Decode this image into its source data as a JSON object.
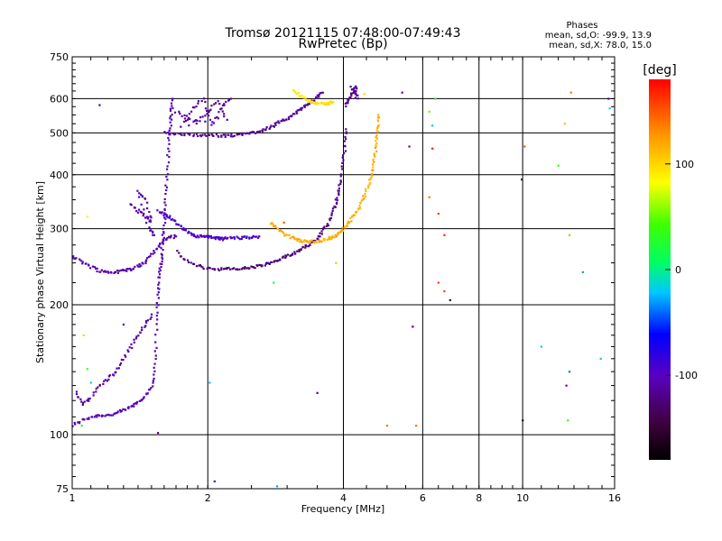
{
  "chart_data": {
    "type": "scatter",
    "title": "Tromsø 20121115 07:48:00-07:49:43",
    "subtitle": "RwPretec (Bp)",
    "xlabel": "Frequency [MHz]",
    "ylabel": "Stationary phase Virtual Height [km]",
    "x_scale": "log",
    "y_scale": "log",
    "xlim": [
      1,
      16
    ],
    "ylim": [
      75,
      750
    ],
    "x_ticks": [
      1,
      2,
      4,
      6,
      8,
      10,
      16
    ],
    "x_tick_labels": [
      "1",
      "2",
      "4",
      "6",
      "8",
      "10",
      "16"
    ],
    "y_ticks": [
      75,
      100,
      200,
      300,
      400,
      500,
      600,
      750
    ],
    "y_tick_labels": [
      "75",
      "100",
      "200",
      "300",
      "400",
      "500",
      "600",
      "750"
    ],
    "grid": true,
    "stats": {
      "heading": "Phases",
      "line_o": "mean, sd,O: -99.9, 13.9",
      "line_x": "mean, sd,X: 78.0, 15.0"
    },
    "colorbar": {
      "label": "[deg]",
      "range": [
        -180,
        180
      ],
      "ticks": [
        100,
        0,
        -100
      ],
      "tick_labels": [
        "100",
        "0",
        "-100"
      ]
    },
    "traces": [
      {
        "points": [
          [
            1.0,
            105
          ],
          [
            1.05,
            108
          ],
          [
            1.1,
            110
          ],
          [
            1.15,
            111
          ],
          [
            1.2,
            111
          ],
          [
            1.25,
            112
          ],
          [
            1.3,
            114
          ],
          [
            1.35,
            116
          ],
          [
            1.4,
            119
          ],
          [
            1.45,
            123
          ],
          [
            1.5,
            128
          ],
          [
            1.52,
            140
          ],
          [
            1.53,
            160
          ],
          [
            1.54,
            190
          ],
          [
            1.55,
            210
          ],
          [
            1.56,
            230
          ],
          [
            1.57,
            245
          ],
          [
            1.58,
            260
          ],
          [
            1.59,
            285
          ],
          [
            1.6,
            310
          ],
          [
            1.61,
            340
          ],
          [
            1.62,
            380
          ],
          [
            1.63,
            430
          ],
          [
            1.64,
            480
          ],
          [
            1.65,
            520
          ],
          [
            1.66,
            560
          ],
          [
            1.67,
            600
          ]
        ],
        "phase": -105
      },
      {
        "points": [
          [
            1.02,
            125
          ],
          [
            1.05,
            118
          ],
          [
            1.1,
            122
          ],
          [
            1.15,
            130
          ],
          [
            1.2,
            135
          ],
          [
            1.25,
            140
          ],
          [
            1.3,
            150
          ],
          [
            1.35,
            160
          ],
          [
            1.4,
            170
          ],
          [
            1.45,
            180
          ],
          [
            1.5,
            190
          ]
        ],
        "phase": -110
      },
      {
        "points": [
          [
            1.0,
            258
          ],
          [
            1.05,
            252
          ],
          [
            1.1,
            245
          ],
          [
            1.15,
            240
          ],
          [
            1.2,
            238
          ],
          [
            1.25,
            238
          ],
          [
            1.3,
            240
          ],
          [
            1.35,
            242
          ],
          [
            1.4,
            246
          ],
          [
            1.45,
            250
          ],
          [
            1.5,
            262
          ],
          [
            1.55,
            272
          ],
          [
            1.6,
            282
          ],
          [
            1.65,
            287
          ],
          [
            1.7,
            288
          ]
        ],
        "phase": -108
      },
      {
        "points": [
          [
            1.7,
            265
          ],
          [
            1.8,
            252
          ],
          [
            1.9,
            246
          ],
          [
            2.0,
            243
          ],
          [
            2.1,
            242
          ],
          [
            2.2,
            242
          ],
          [
            2.3,
            242
          ],
          [
            2.4,
            243
          ],
          [
            2.5,
            244
          ],
          [
            2.6,
            246
          ],
          [
            2.7,
            248
          ],
          [
            2.8,
            251
          ],
          [
            2.9,
            255
          ],
          [
            3.0,
            259
          ],
          [
            3.1,
            263
          ],
          [
            3.2,
            268
          ],
          [
            3.3,
            274
          ]
        ],
        "phase": -125
      },
      {
        "points": [
          [
            3.3,
            274
          ],
          [
            3.4,
            278
          ],
          [
            3.5,
            285
          ],
          [
            3.6,
            295
          ],
          [
            3.7,
            310
          ],
          [
            3.8,
            330
          ],
          [
            3.85,
            345
          ],
          [
            3.9,
            365
          ],
          [
            3.95,
            390
          ],
          [
            4.0,
            430
          ],
          [
            4.03,
            470
          ],
          [
            4.05,
            510
          ]
        ],
        "phase": -120
      },
      {
        "points": [
          [
            2.75,
            310
          ],
          [
            2.85,
            300
          ],
          [
            2.95,
            292
          ],
          [
            3.05,
            287
          ],
          [
            3.15,
            283
          ],
          [
            3.25,
            281
          ],
          [
            3.35,
            280
          ],
          [
            3.45,
            280
          ],
          [
            3.55,
            281
          ],
          [
            3.65,
            283
          ],
          [
            3.75,
            286
          ],
          [
            3.85,
            290
          ],
          [
            3.95,
            296
          ],
          [
            4.05,
            304
          ],
          [
            4.15,
            314
          ],
          [
            4.25,
            325
          ],
          [
            4.35,
            340
          ],
          [
            4.45,
            358
          ],
          [
            4.55,
            380
          ],
          [
            4.62,
            405
          ],
          [
            4.68,
            430
          ],
          [
            4.72,
            460
          ],
          [
            4.75,
            490
          ],
          [
            4.77,
            520
          ],
          [
            4.78,
            550
          ]
        ],
        "phase": 118
      },
      {
        "points": [
          [
            1.6,
            500
          ],
          [
            1.7,
            498
          ],
          [
            1.8,
            495
          ],
          [
            1.9,
            495
          ],
          [
            2.0,
            495
          ],
          [
            2.1,
            492
          ],
          [
            2.2,
            492
          ],
          [
            2.3,
            494
          ],
          [
            2.4,
            497
          ],
          [
            2.5,
            500
          ],
          [
            2.6,
            505
          ],
          [
            2.7,
            512
          ],
          [
            2.8,
            520
          ],
          [
            2.9,
            530
          ],
          [
            3.0,
            540
          ],
          [
            3.1,
            552
          ],
          [
            3.2,
            565
          ],
          [
            3.3,
            578
          ],
          [
            3.4,
            590
          ],
          [
            3.5,
            605
          ],
          [
            3.6,
            620
          ]
        ],
        "phase": -115
      },
      {
        "points": [
          [
            1.7,
            560
          ],
          [
            1.8,
            540
          ],
          [
            1.9,
            530
          ],
          [
            2.0,
            560
          ],
          [
            2.1,
            590
          ],
          [
            2.2,
            540
          ],
          [
            1.75,
            520
          ],
          [
            1.85,
            570
          ],
          [
            1.95,
            600
          ],
          [
            2.05,
            520
          ],
          [
            2.15,
            575
          ],
          [
            2.25,
            600
          ]
        ],
        "phase": -112
      },
      {
        "points": [
          [
            1.55,
            330
          ],
          [
            1.6,
            325
          ],
          [
            1.65,
            318
          ],
          [
            1.7,
            310
          ],
          [
            1.75,
            300
          ],
          [
            1.8,
            295
          ],
          [
            1.85,
            290
          ],
          [
            1.9,
            288
          ],
          [
            1.95,
            288
          ],
          [
            2.0,
            287
          ],
          [
            2.05,
            286
          ],
          [
            2.1,
            285
          ],
          [
            2.15,
            284
          ],
          [
            2.2,
            285
          ],
          [
            2.3,
            286
          ],
          [
            2.4,
            286
          ],
          [
            2.5,
            287
          ],
          [
            2.6,
            288
          ]
        ],
        "phase": -95
      },
      {
        "points": [
          [
            1.35,
            340
          ],
          [
            1.4,
            330
          ],
          [
            1.45,
            320
          ],
          [
            1.5,
            310
          ],
          [
            1.45,
            350
          ],
          [
            1.4,
            365
          ],
          [
            1.48,
            300
          ],
          [
            1.52,
            290
          ]
        ],
        "phase": -108
      },
      {
        "points": [
          [
            3.1,
            625
          ],
          [
            3.2,
            612
          ],
          [
            3.3,
            600
          ],
          [
            3.4,
            590
          ],
          [
            3.5,
            585
          ],
          [
            3.6,
            583
          ],
          [
            3.7,
            585
          ],
          [
            3.8,
            590
          ]
        ],
        "phase": 95
      },
      {
        "points": [
          [
            4.05,
            580
          ],
          [
            4.1,
            600
          ],
          [
            4.2,
            620
          ],
          [
            4.25,
            640
          ],
          [
            4.3,
            600
          ],
          [
            4.15,
            640
          ]
        ],
        "phase": -115
      }
    ],
    "scattered": [
      {
        "x": 1.15,
        "y": 580,
        "phase": -95
      },
      {
        "x": 1.08,
        "y": 320,
        "phase": 90
      },
      {
        "x": 1.06,
        "y": 170,
        "phase": 60
      },
      {
        "x": 1.08,
        "y": 142,
        "phase": 40
      },
      {
        "x": 1.1,
        "y": 132,
        "phase": -20
      },
      {
        "x": 1.05,
        "y": 105,
        "phase": 20
      },
      {
        "x": 1.55,
        "y": 101,
        "phase": -110
      },
      {
        "x": 1.3,
        "y": 180,
        "phase": -108
      },
      {
        "x": 2.02,
        "y": 132,
        "phase": -20
      },
      {
        "x": 2.07,
        "y": 78,
        "phase": -95
      },
      {
        "x": 2.8,
        "y": 225,
        "phase": 10
      },
      {
        "x": 2.95,
        "y": 310,
        "phase": 150
      },
      {
        "x": 2.85,
        "y": 76,
        "phase": -30
      },
      {
        "x": 2.7,
        "y": 250,
        "phase": -60
      },
      {
        "x": 3.5,
        "y": 125,
        "phase": -120
      },
      {
        "x": 3.85,
        "y": 250,
        "phase": 110
      },
      {
        "x": 4.45,
        "y": 615,
        "phase": 100
      },
      {
        "x": 5.0,
        "y": 105,
        "phase": 140
      },
      {
        "x": 5.4,
        "y": 620,
        "phase": -95
      },
      {
        "x": 5.6,
        "y": 465,
        "phase": -100
      },
      {
        "x": 5.7,
        "y": 178,
        "phase": -135
      },
      {
        "x": 5.8,
        "y": 105,
        "phase": 140
      },
      {
        "x": 6.2,
        "y": 560,
        "phase": 50
      },
      {
        "x": 6.4,
        "y": 600,
        "phase": 20
      },
      {
        "x": 6.3,
        "y": 520,
        "phase": -20
      },
      {
        "x": 6.3,
        "y": 460,
        "phase": 170
      },
      {
        "x": 6.2,
        "y": 355,
        "phase": 140
      },
      {
        "x": 6.5,
        "y": 325,
        "phase": 160
      },
      {
        "x": 6.7,
        "y": 290,
        "phase": 170
      },
      {
        "x": 6.5,
        "y": 225,
        "phase": 160
      },
      {
        "x": 6.7,
        "y": 215,
        "phase": 160
      },
      {
        "x": 6.9,
        "y": 205,
        "phase": -150
      },
      {
        "x": 9.95,
        "y": 390,
        "phase": -140
      },
      {
        "x": 10.1,
        "y": 465,
        "phase": 150
      },
      {
        "x": 10.0,
        "y": 108,
        "phase": -150
      },
      {
        "x": 11.0,
        "y": 160,
        "phase": -20
      },
      {
        "x": 12.0,
        "y": 420,
        "phase": 40
      },
      {
        "x": 12.6,
        "y": 108,
        "phase": 40
      },
      {
        "x": 12.7,
        "y": 140,
        "phase": -40
      },
      {
        "x": 12.5,
        "y": 130,
        "phase": -100
      },
      {
        "x": 12.8,
        "y": 620,
        "phase": 140
      },
      {
        "x": 12.4,
        "y": 525,
        "phase": 110
      },
      {
        "x": 12.7,
        "y": 290,
        "phase": 120
      },
      {
        "x": 13.6,
        "y": 238,
        "phase": -30
      },
      {
        "x": 15.5,
        "y": 600,
        "phase": -90
      },
      {
        "x": 15.6,
        "y": 570,
        "phase": -10
      },
      {
        "x": 14.9,
        "y": 150,
        "phase": -20
      }
    ]
  }
}
